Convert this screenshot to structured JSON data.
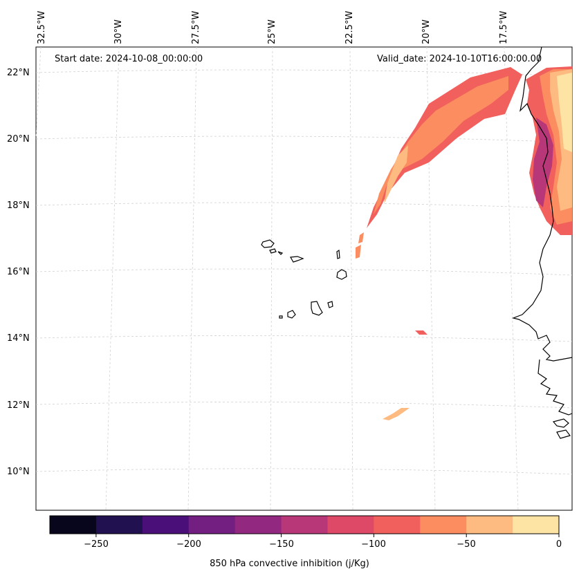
{
  "map": {
    "start_label": "Start date: 2024-10-08_00:00:00",
    "valid_label": "Valid_date: 2024-10-10T16:00:00.00",
    "lon_labels": [
      "32.5°W",
      "30°W",
      "27.5°W",
      "25°W",
      "22.5°W",
      "20°W",
      "17.5°W"
    ],
    "lat_labels": [
      "22°N",
      "20°N",
      "18°N",
      "16°N",
      "14°N",
      "12°N",
      "10°N"
    ]
  },
  "colorbar": {
    "title": "850 hPa convective inhibition (j/Kg)",
    "ticks": [
      "−250",
      "−200",
      "−150",
      "−100",
      "−50",
      "0"
    ],
    "colors": [
      "#07061c",
      "#221150",
      "#4a0f78",
      "#721f81",
      "#92287f",
      "#b73779",
      "#de4968",
      "#f1605d",
      "#fb8d60",
      "#febb81",
      "#fde4a5"
    ]
  },
  "colors": {
    "land_outline": "#000000",
    "gridline": "#c8c8c8"
  }
}
